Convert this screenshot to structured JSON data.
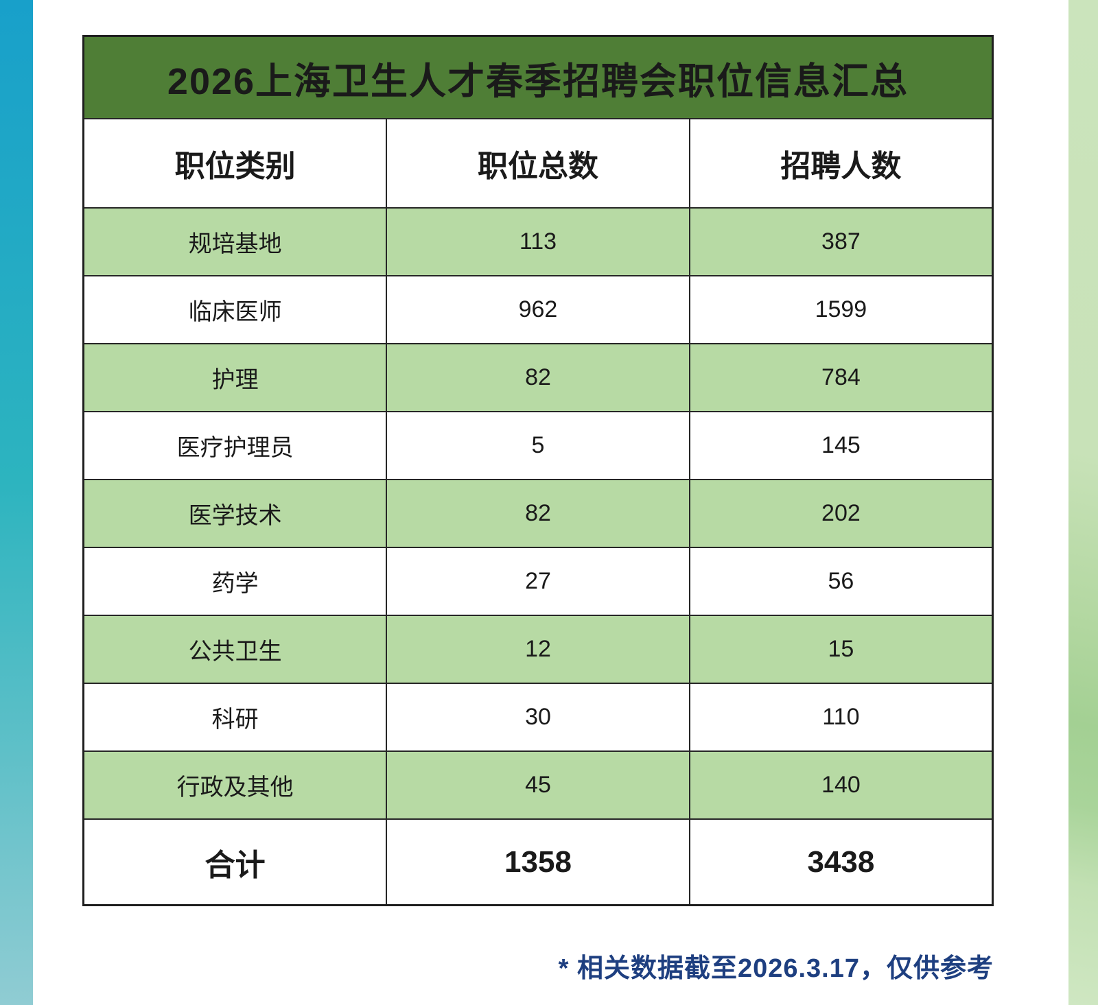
{
  "page": {
    "title": "2026上海卫生人才春季招聘会职位信息汇总",
    "footnote": "* 相关数据截至2026.3.17，仅供参考"
  },
  "table": {
    "columns": [
      "职位类别",
      "职位总数",
      "招聘人数"
    ],
    "rows": [
      {
        "category": "规培基地",
        "positions": "113",
        "recruits": "387"
      },
      {
        "category": "临床医师",
        "positions": "962",
        "recruits": "1599"
      },
      {
        "category": "护理",
        "positions": "82",
        "recruits": "784"
      },
      {
        "category": "医疗护理员",
        "positions": "5",
        "recruits": "145"
      },
      {
        "category": "医学技术",
        "positions": "82",
        "recruits": "202"
      },
      {
        "category": "药学",
        "positions": "27",
        "recruits": "56"
      },
      {
        "category": "公共卫生",
        "positions": "12",
        "recruits": "15"
      },
      {
        "category": "科研",
        "positions": "30",
        "recruits": "110"
      },
      {
        "category": "行政及其他",
        "positions": "45",
        "recruits": "140"
      }
    ],
    "total": {
      "category": "合计",
      "positions": "1358",
      "recruits": "3438"
    }
  },
  "colors": {
    "title_bar_green": "#4f7e36",
    "row_green": "#b7daa4",
    "row_white": "#ffffff",
    "border": "#262626",
    "footnote_navy": "#1e3f80",
    "left_strip_top": "#18a0ca",
    "left_strip_mid": "#2db4bf",
    "left_strip_bottom": "#90ccd3",
    "right_strip_green": "#b2d7a0"
  },
  "chart_data": {
    "type": "table",
    "title": "2026上海卫生人才春季招聘会职位信息汇总",
    "columns": [
      "职位类别",
      "职位总数",
      "招聘人数"
    ],
    "rows": [
      [
        "规培基地",
        113,
        387
      ],
      [
        "临床医师",
        962,
        1599
      ],
      [
        "护理",
        82,
        784
      ],
      [
        "医疗护理员",
        5,
        145
      ],
      [
        "医学技术",
        82,
        202
      ],
      [
        "药学",
        27,
        56
      ],
      [
        "公共卫生",
        12,
        15
      ],
      [
        "科研",
        30,
        110
      ],
      [
        "行政及其他",
        45,
        140
      ],
      [
        "合计",
        1358,
        3438
      ]
    ],
    "annotations": [
      "* 相关数据截至2026.3.17，仅供参考"
    ],
    "layout_hints": {
      "striped_rows": true,
      "stripe_color": "#b7daa4",
      "header_bar_color": "#4f7e36"
    }
  }
}
